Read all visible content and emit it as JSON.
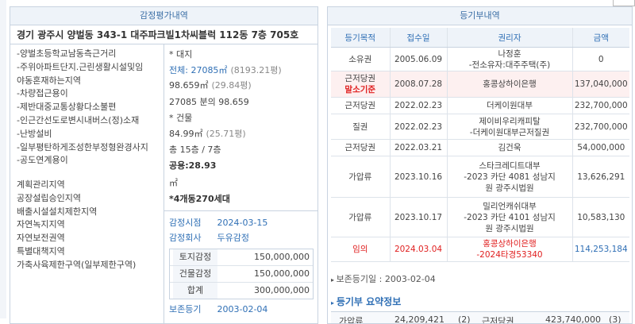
{
  "appraisal": {
    "title": "감정평가내역",
    "address": "경기 광주시 양벌동 343-1 대주파크빌1차씨블럭 112동 7층 705호",
    "features": [
      "-양벌초등학교남동측근거리",
      "-주위아파트단지.근린생활시설및임",
      "야동혼재하는지역",
      "-차량접근용이",
      "-제반대중교통상황다소불편",
      "-인근간선도로변시내버스(정)소재",
      "-난방설비",
      "-일부평탄하게조성한부정형완경사지",
      "-공도연계용이"
    ],
    "zoning": [
      "계획관리지역",
      "공장설립승인지역",
      "배출시설설치제한지역",
      "자연녹지지역",
      "자연보전권역",
      "특별대책지역",
      "가축사육제한구역(일부제한구역)"
    ],
    "land": {
      "heading": "* 대지",
      "total": "전체: 27085㎡",
      "total_pyeong": "(8193.21평)",
      "share": "98.659㎡",
      "share_pyeong": "(29.84평)",
      "ratio": "27085 분의 98.659"
    },
    "building": {
      "heading": "* 건물",
      "area": "84.99㎡",
      "area_pyeong": "(25.71평)",
      "floors": "총 15층 / 7층",
      "common": "공용:28.93",
      "common_unit": "㎡",
      "complex": "*4개동270세대"
    },
    "date_label": "감정시점",
    "date": "2024-03-15",
    "company_label": "감정회사",
    "company": "두유감정",
    "amounts": [
      [
        "토지감정",
        "150,000,000"
      ],
      [
        "건물감정",
        "150,000,000"
      ],
      [
        "합계",
        "300,000,000"
      ]
    ],
    "registry_label": "보존등기",
    "registry_date": "2003-02-04"
  },
  "registry": {
    "title": "등기부내역",
    "columns": [
      "등기목적",
      "접수일",
      "권리자",
      "금액"
    ],
    "rows": [
      {
        "purpose": [
          "소유권"
        ],
        "date": "2005.06.09",
        "holder": [
          "나정훈",
          "-전소유자:대주주택(주)"
        ],
        "amount": "0"
      },
      {
        "purpose": [
          "근저당권",
          "말소기준"
        ],
        "date": "2008.07.28",
        "holder": [
          "홍콩상하이은행"
        ],
        "amount": "137,040,000"
      },
      {
        "purpose": [
          "근저당권"
        ],
        "date": "2022.02.23",
        "holder": [
          "더케이원대부"
        ],
        "amount": "232,700,000"
      },
      {
        "purpose": [
          "질권"
        ],
        "date": "2022.02.23",
        "holder": [
          "제이비우리캐피탈",
          "-더케이원대부근저질권"
        ],
        "amount": "232,700,000"
      },
      {
        "purpose": [
          "근저당권"
        ],
        "date": "2022.03.21",
        "holder": [
          "김건욱"
        ],
        "amount": "54,000,000"
      },
      {
        "purpose": [
          "가압류"
        ],
        "date": "2023.10.16",
        "holder": [
          "스타크레디트대부",
          "-2023 카단 4081 성남지",
          "원 광주시법원"
        ],
        "amount": "13,626,291"
      },
      {
        "purpose": [
          "가압류"
        ],
        "date": "2023.10.17",
        "holder": [
          "밀리언캐쉬대부",
          "-2023 카단 4101 성남지",
          "원 광주시법원"
        ],
        "amount": "10,583,130"
      },
      {
        "purpose": [
          "임의"
        ],
        "date": "2024.03.04",
        "holder": [
          "홍콩상하이은행",
          "-2024타경53340"
        ],
        "amount": "114,253,184"
      }
    ],
    "preservation": "보존등기일 : 2003-02-04",
    "summary_title": "등기부 요약정보",
    "summary": [
      "가압류",
      "24,209,421",
      "(2)",
      "근저당권",
      "423,740,000",
      "(3)"
    ]
  }
}
